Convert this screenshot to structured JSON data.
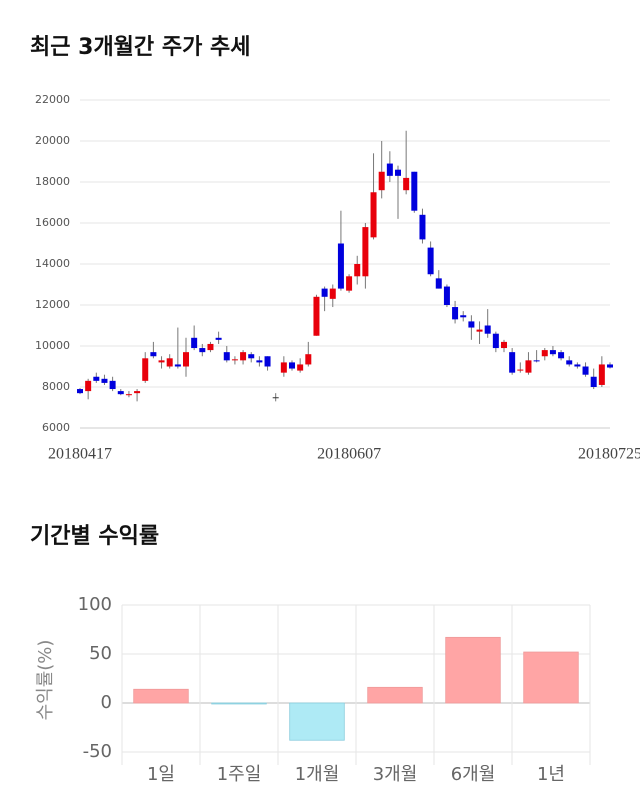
{
  "chart_data": [
    {
      "type": "candlestick",
      "title": "최근 3개월간 주가 추세",
      "categories": [
        "20180417",
        null,
        null,
        null,
        null,
        null,
        null,
        null,
        null,
        null,
        null,
        null,
        null,
        null,
        null,
        null,
        null,
        null,
        null,
        null,
        null,
        null,
        null,
        null,
        null,
        null,
        null,
        null,
        null,
        null,
        null,
        null,
        null,
        "20180607",
        null,
        null,
        null,
        null,
        null,
        null,
        null,
        null,
        null,
        null,
        null,
        null,
        null,
        null,
        null,
        null,
        null,
        null,
        null,
        null,
        null,
        null,
        null,
        null,
        null,
        null,
        null,
        null,
        null,
        null,
        null,
        "20180725"
      ],
      "open": [
        7900,
        7800,
        8500,
        8400,
        8300,
        7800,
        7600,
        7700,
        8300,
        9700,
        9200,
        9000,
        9100,
        9000,
        10400,
        9900,
        9800,
        10400,
        9700,
        9300,
        9300,
        9600,
        9300,
        9500,
        7500,
        8700,
        9200,
        8800,
        9100,
        10500,
        12800,
        12300,
        15000,
        12700,
        13400,
        13400,
        15300,
        17600,
        18900,
        18600,
        17600,
        18500,
        16400,
        14800,
        13300,
        12900,
        11900,
        11500,
        11200,
        10700,
        11000,
        10600,
        9900,
        9700,
        8800,
        8700,
        9300,
        9500,
        9800,
        9700,
        9300,
        9100,
        9000,
        8500,
        8100,
        9100
      ],
      "high": [
        7950,
        8400,
        8700,
        8600,
        8500,
        7900,
        7800,
        7900,
        9700,
        10200,
        9500,
        9600,
        10900,
        10400,
        11000,
        10100,
        10200,
        10700,
        10000,
        9500,
        9800,
        9700,
        9500,
        9500,
        7700,
        9500,
        9300,
        9400,
        10200,
        12500,
        12900,
        13000,
        16600,
        13500,
        14400,
        16000,
        19400,
        20000,
        19500,
        18800,
        20500,
        18500,
        16700,
        15100,
        13700,
        13000,
        12200,
        11700,
        11500,
        11200,
        11800,
        10700,
        10300,
        9900,
        9200,
        9700,
        9800,
        9900,
        10000,
        9800,
        9500,
        9200,
        9200,
        8900,
        9500,
        9200
      ],
      "low": [
        7650,
        7400,
        8200,
        8100,
        7800,
        7600,
        7500,
        7300,
        8200,
        9400,
        8900,
        8900,
        8900,
        8500,
        9800,
        9500,
        9700,
        10100,
        9200,
        9100,
        9100,
        9200,
        9000,
        8800,
        7300,
        8500,
        8800,
        8700,
        9000,
        10500,
        11700,
        11900,
        12700,
        12600,
        13000,
        12800,
        15200,
        17200,
        18000,
        16200,
        17400,
        16500,
        15000,
        13400,
        12800,
        11900,
        11100,
        11200,
        10300,
        10100,
        10400,
        9700,
        9700,
        8600,
        8700,
        8600,
        9200,
        9300,
        9500,
        9300,
        9000,
        8900,
        8500,
        7900,
        8000,
        8900
      ],
      "close": [
        7700,
        8300,
        8300,
        8200,
        7900,
        7650,
        7650,
        7800,
        9400,
        9500,
        9300,
        9400,
        9000,
        9700,
        9900,
        9700,
        10100,
        10300,
        9300,
        9350,
        9700,
        9400,
        9200,
        9000,
        7500,
        9200,
        8900,
        9100,
        9600,
        12400,
        12400,
        12800,
        12800,
        13400,
        14000,
        15800,
        17500,
        18500,
        18300,
        18300,
        18200,
        16600,
        15200,
        13500,
        12800,
        12000,
        11300,
        11400,
        10900,
        10800,
        10600,
        9900,
        10200,
        8700,
        8850,
        9300,
        9250,
        9800,
        9600,
        9400,
        9100,
        9000,
        8600,
        8000,
        9100,
        8950
      ],
      "up_color": "#e8000b",
      "down_color": "#0000dd",
      "ylim": [
        6000,
        22000
      ],
      "yticks": [
        6000,
        8000,
        10000,
        12000,
        14000,
        16000,
        18000,
        20000,
        22000
      ],
      "grid": true
    },
    {
      "type": "bar",
      "title": "기간별 수익률",
      "y_label": "수익률(%)",
      "categories": [
        "1일",
        "1주일",
        "1개월",
        "3개월",
        "6개월",
        "1년"
      ],
      "values": [
        14,
        -1,
        -38,
        16,
        67,
        52
      ],
      "positive_color": "#ffa5a5",
      "negative_color": "#aeeaf5",
      "ylim": [
        -50,
        100
      ],
      "yticks": [
        -50,
        0,
        50,
        100
      ],
      "grid": true
    }
  ]
}
